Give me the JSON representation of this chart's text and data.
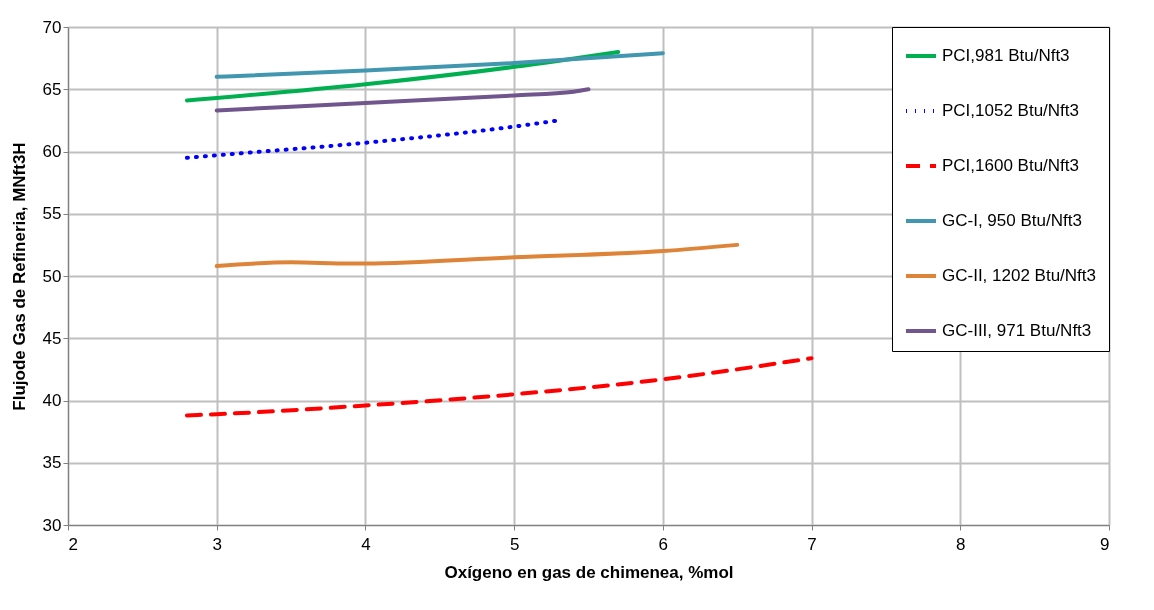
{
  "chart_data": {
    "type": "line",
    "xlabel": "Oxígeno en gas de chimenea, %mol",
    "ylabel": "Flujode Gas de Refineria, MNft3H",
    "xlim": [
      2,
      9
    ],
    "xticks": [
      2,
      3,
      4,
      5,
      6,
      7,
      8,
      9
    ],
    "ylim": [
      30,
      70
    ],
    "yticks": [
      30,
      35,
      40,
      45,
      50,
      55,
      60,
      65,
      70
    ],
    "grid": true,
    "legend": "top right",
    "marker": "none",
    "series": [
      {
        "name": "PCI,981 Btu/Nft3",
        "color": "#00b050",
        "line_style": "solid",
        "x": [
          2.8,
          3,
          4,
          5,
          5.7
        ],
        "values": [
          64.1,
          64.3,
          65.4,
          66.8,
          68.0
        ]
      },
      {
        "name": "PCI,1052 Btu/Nft3",
        "color": "#0000ff",
        "line_style": "dotted",
        "x": [
          2.8,
          3,
          4,
          5,
          5.3
        ],
        "values": [
          59.5,
          59.7,
          60.7,
          62.0,
          62.5
        ]
      },
      {
        "name": "PCI,1600 Btu/Nft3",
        "color": "#ff0000",
        "line_style": "dashed",
        "x": [
          2.8,
          3,
          4,
          5,
          6,
          7
        ],
        "values": [
          38.8,
          38.9,
          39.6,
          40.5,
          41.7,
          43.4
        ]
      },
      {
        "name": "GC-I, 950 Btu/Nft3",
        "color": "#4196b0",
        "line_style": "solid",
        "x": [
          3,
          4,
          5,
          6
        ],
        "values": [
          66.0,
          66.5,
          67.1,
          67.9
        ]
      },
      {
        "name": "GC-II, 1202 Btu/Nft3",
        "color": "#de8439",
        "line_style": "solid",
        "x": [
          3,
          3.5,
          3.9,
          4,
          5,
          6,
          6.5
        ],
        "values": [
          50.8,
          51.1,
          51.0,
          51.0,
          51.5,
          52.0,
          52.5
        ]
      },
      {
        "name": "GC-III, 971 Btu/Nft3",
        "color": "#70568c",
        "line_style": "solid",
        "x": [
          3,
          4,
          5,
          5.4,
          5.5
        ],
        "values": [
          63.3,
          63.9,
          64.5,
          64.8,
          65.0
        ]
      }
    ]
  }
}
